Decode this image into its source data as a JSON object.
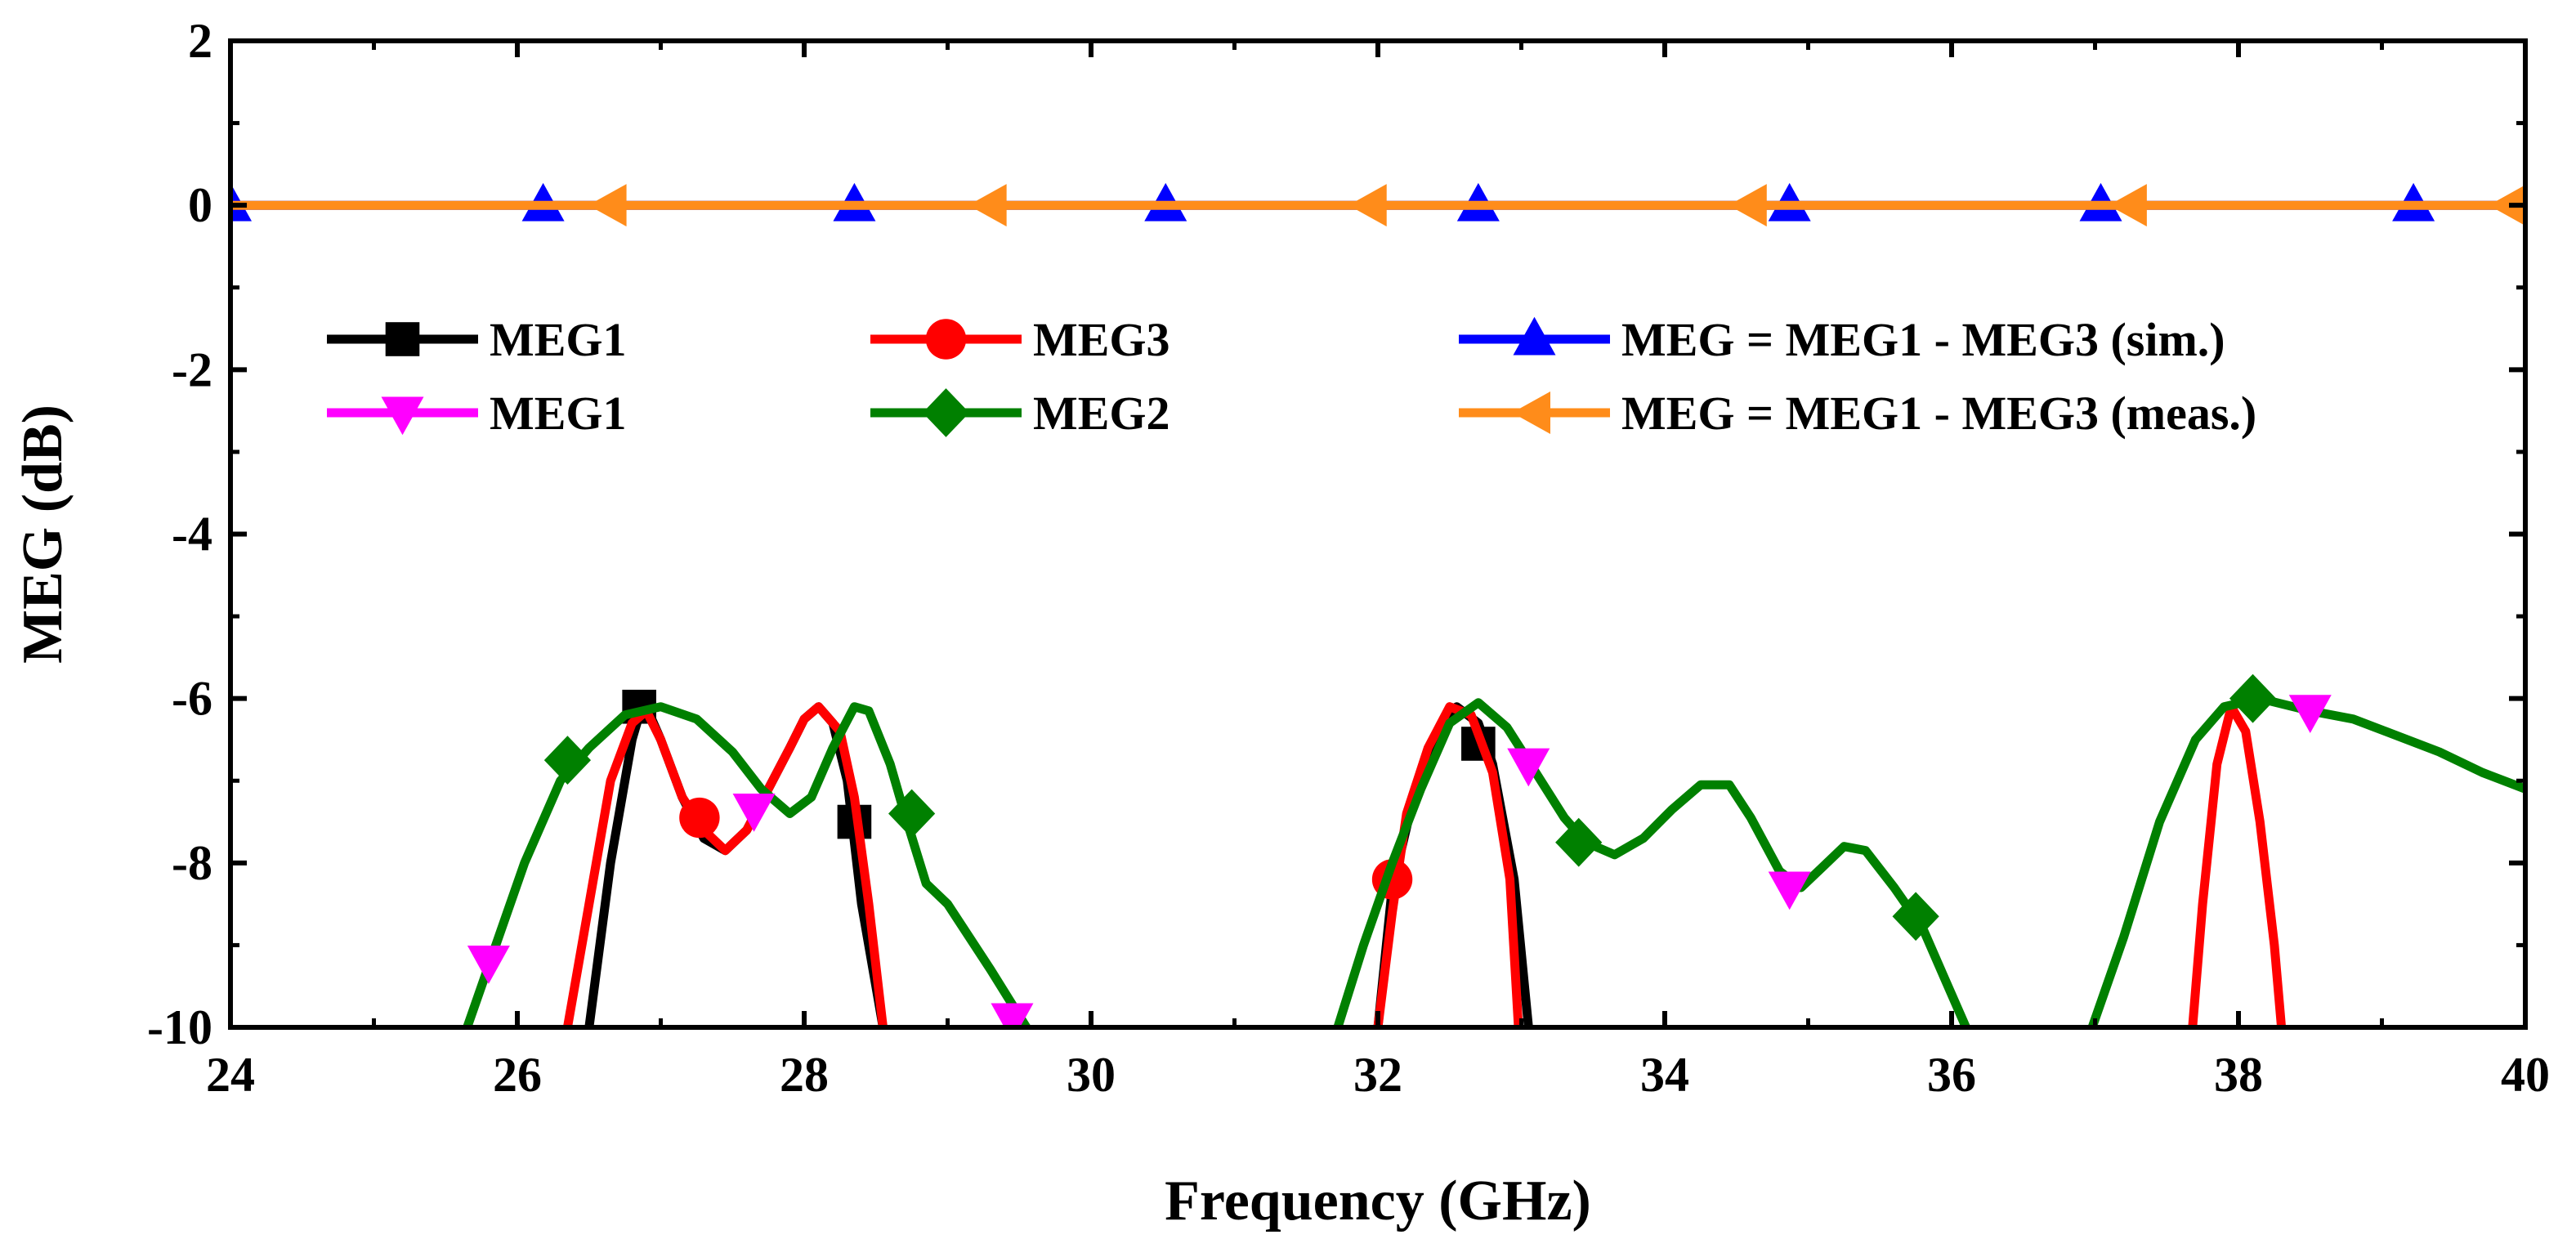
{
  "chart_data": {
    "type": "line",
    "xlabel": "Frequency (GHz)",
    "ylabel": "MEG (dB)",
    "xlim": [
      24,
      40
    ],
    "ylim": [
      -10,
      2
    ],
    "xticks": [
      24,
      26,
      28,
      30,
      32,
      34,
      36,
      38,
      40
    ],
    "yticks": [
      2,
      0,
      -2,
      -4,
      -6,
      -8,
      -10
    ],
    "grid": false,
    "legend": "upper-center, two rows of three",
    "series": [
      {
        "name": "MEG1",
        "color": "#000000",
        "marker": "square",
        "segments": [
          [
            [
              26.5,
              -10
            ],
            [
              26.65,
              -8
            ],
            [
              26.8,
              -6.5
            ],
            [
              26.85,
              -6.2
            ],
            [
              26.9,
              -6.1
            ],
            [
              27.0,
              -6.5
            ],
            [
              27.15,
              -7.2
            ],
            [
              27.3,
              -7.7
            ],
            [
              27.45,
              -7.85
            ],
            [
              27.6,
              -7.6
            ],
            [
              27.75,
              -7.1
            ],
            [
              27.9,
              -6.6
            ],
            [
              28.0,
              -6.25
            ],
            [
              28.1,
              -6.1
            ],
            [
              28.2,
              -6.3
            ],
            [
              28.3,
              -7.0
            ],
            [
              28.4,
              -8.5
            ],
            [
              28.55,
              -10
            ]
          ],
          [
            [
              32.0,
              -10
            ],
            [
              32.1,
              -8.3
            ],
            [
              32.25,
              -7.2
            ],
            [
              32.4,
              -6.5
            ],
            [
              32.55,
              -6.1
            ],
            [
              32.7,
              -6.3
            ],
            [
              32.8,
              -6.8
            ],
            [
              32.95,
              -8.2
            ],
            [
              33.05,
              -10
            ]
          ]
        ],
        "markers": [
          [
            26.85,
            -6.1
          ],
          [
            28.35,
            -7.5
          ],
          [
            32.7,
            -6.55
          ]
        ]
      },
      {
        "name": "MEG3",
        "color": "#ff0000",
        "marker": "circle",
        "segments": [
          [
            [
              26.35,
              -10
            ],
            [
              26.5,
              -8.5
            ],
            [
              26.65,
              -7.0
            ],
            [
              26.8,
              -6.3
            ],
            [
              26.9,
              -6.15
            ],
            [
              27.0,
              -6.5
            ],
            [
              27.15,
              -7.2
            ],
            [
              27.3,
              -7.6
            ],
            [
              27.45,
              -7.85
            ],
            [
              27.6,
              -7.6
            ],
            [
              27.75,
              -7.1
            ],
            [
              27.9,
              -6.6
            ],
            [
              28.0,
              -6.25
            ],
            [
              28.1,
              -6.1
            ],
            [
              28.25,
              -6.4
            ],
            [
              28.35,
              -7.2
            ],
            [
              28.45,
              -8.5
            ],
            [
              28.55,
              -10
            ]
          ],
          [
            [
              32.0,
              -10
            ],
            [
              32.1,
              -8.6
            ],
            [
              32.2,
              -7.4
            ],
            [
              32.35,
              -6.6
            ],
            [
              32.5,
              -6.1
            ],
            [
              32.65,
              -6.2
            ],
            [
              32.8,
              -6.9
            ],
            [
              32.92,
              -8.2
            ],
            [
              32.98,
              -10
            ]
          ],
          [
            [
              37.68,
              -10
            ],
            [
              37.75,
              -8.5
            ],
            [
              37.85,
              -6.8
            ],
            [
              37.95,
              -6.1
            ],
            [
              38.05,
              -6.4
            ],
            [
              38.15,
              -7.5
            ],
            [
              38.25,
              -9.0
            ],
            [
              38.3,
              -10
            ]
          ]
        ],
        "markers": [
          [
            27.27,
            -7.45
          ],
          [
            32.1,
            -8.2
          ]
        ]
      },
      {
        "name": "MEG = MEG1 - MEG3 (sim.)",
        "color": "#0000ff",
        "marker": "triangle-up",
        "segments": [
          [
            [
              24,
              0
            ],
            [
              40,
              0
            ]
          ]
        ],
        "markers": [
          [
            24.0,
            0
          ],
          [
            26.18,
            0
          ],
          [
            28.35,
            0
          ],
          [
            30.52,
            0
          ],
          [
            32.7,
            0
          ],
          [
            34.87,
            0
          ],
          [
            37.04,
            0
          ],
          [
            39.22,
            0
          ]
        ]
      },
      {
        "name": "MEG1",
        "color": "#ff00ff",
        "marker": "triangle-down",
        "segments": [],
        "markers": [
          [
            25.8,
            -9.2
          ],
          [
            27.65,
            -7.35
          ],
          [
            29.45,
            -9.9
          ],
          [
            33.05,
            -6.8
          ],
          [
            34.87,
            -8.3
          ],
          [
            38.5,
            -6.15
          ]
        ]
      },
      {
        "name": "MEG2",
        "color": "#008000",
        "marker": "diamond",
        "segments": [
          [
            [
              25.65,
              -10
            ],
            [
              25.85,
              -9.0
            ],
            [
              26.05,
              -8.0
            ],
            [
              26.3,
              -7.0
            ],
            [
              26.5,
              -6.6
            ],
            [
              26.75,
              -6.2
            ],
            [
              27.0,
              -6.1
            ],
            [
              27.25,
              -6.25
            ],
            [
              27.5,
              -6.65
            ],
            [
              27.7,
              -7.1
            ],
            [
              27.9,
              -7.4
            ],
            [
              28.05,
              -7.2
            ],
            [
              28.2,
              -6.6
            ],
            [
              28.35,
              -6.1
            ],
            [
              28.45,
              -6.15
            ],
            [
              28.6,
              -6.8
            ],
            [
              28.7,
              -7.4
            ],
            [
              28.85,
              -8.25
            ],
            [
              29.0,
              -8.5
            ],
            [
              29.3,
              -9.3
            ],
            [
              29.55,
              -10
            ]
          ],
          [
            [
              31.72,
              -10
            ],
            [
              31.9,
              -9.0
            ],
            [
              32.1,
              -8.0
            ],
            [
              32.3,
              -7.1
            ],
            [
              32.5,
              -6.3
            ],
            [
              32.7,
              -6.05
            ],
            [
              32.9,
              -6.35
            ],
            [
              33.1,
              -6.9
            ],
            [
              33.3,
              -7.45
            ],
            [
              33.45,
              -7.75
            ],
            [
              33.65,
              -7.9
            ],
            [
              33.85,
              -7.7
            ],
            [
              34.05,
              -7.35
            ],
            [
              34.25,
              -7.05
            ],
            [
              34.45,
              -7.05
            ],
            [
              34.6,
              -7.45
            ],
            [
              34.8,
              -8.1
            ],
            [
              34.95,
              -8.3
            ],
            [
              35.1,
              -8.05
            ],
            [
              35.25,
              -7.8
            ],
            [
              35.4,
              -7.85
            ],
            [
              35.6,
              -8.3
            ],
            [
              35.8,
              -8.8
            ],
            [
              35.95,
              -9.4
            ],
            [
              36.1,
              -10
            ]
          ],
          [
            [
              36.98,
              -10
            ],
            [
              37.2,
              -8.9
            ],
            [
              37.45,
              -7.5
            ],
            [
              37.7,
              -6.5
            ],
            [
              37.9,
              -6.1
            ],
            [
              38.15,
              -6.0
            ],
            [
              38.5,
              -6.15
            ],
            [
              38.8,
              -6.25
            ],
            [
              39.1,
              -6.45
            ],
            [
              39.4,
              -6.65
            ],
            [
              39.7,
              -6.9
            ],
            [
              40.0,
              -7.1
            ]
          ]
        ],
        "markers": [
          [
            26.35,
            -6.75
          ],
          [
            28.75,
            -7.4
          ],
          [
            33.4,
            -7.75
          ],
          [
            35.75,
            -8.65
          ],
          [
            38.1,
            -6.0
          ]
        ]
      },
      {
        "name": "MEG = MEG1 - MEG3 (meas.)",
        "color": "#ff8c1a",
        "marker": "triangle-left",
        "segments": [
          [
            [
              24,
              0
            ],
            [
              40,
              0
            ]
          ]
        ],
        "markers": [
          [
            26.65,
            0
          ],
          [
            29.3,
            0
          ],
          [
            31.95,
            0
          ],
          [
            34.6,
            0
          ],
          [
            37.25,
            0
          ],
          [
            39.9,
            0
          ]
        ]
      }
    ]
  }
}
